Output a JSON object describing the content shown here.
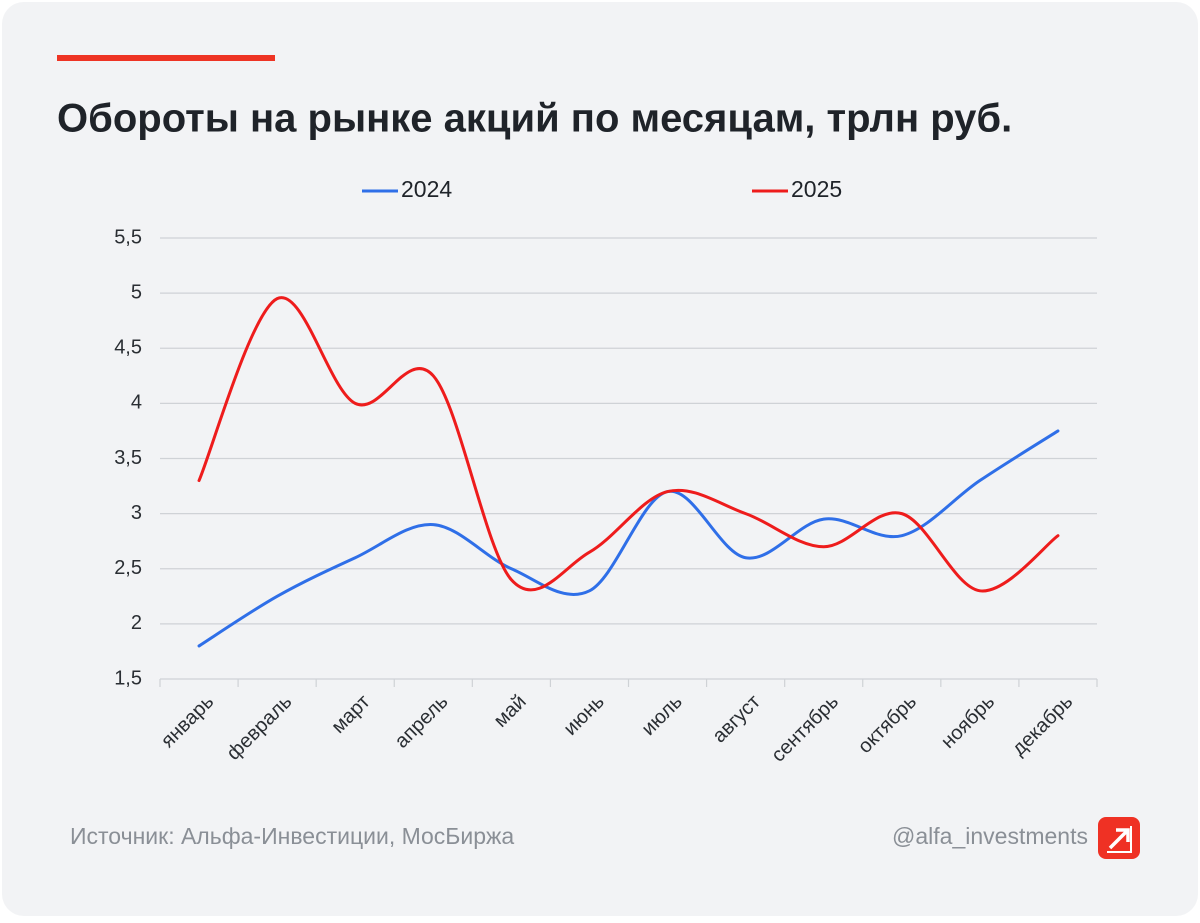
{
  "chart_data": {
    "type": "line",
    "title": "Обороты на рынке акций по месяцам, трлн руб.",
    "categories": [
      "январь",
      "февраль",
      "март",
      "апрель",
      "май",
      "июнь",
      "июль",
      "август",
      "сентябрь",
      "октябрь",
      "ноябрь",
      "декабрь"
    ],
    "series": [
      {
        "name": "2024",
        "color": "#2f6fe8",
        "values": [
          1.8,
          2.25,
          2.6,
          2.9,
          2.5,
          2.3,
          3.2,
          2.6,
          2.95,
          2.8,
          3.3,
          3.75
        ]
      },
      {
        "name": "2025",
        "color": "#ee1c1c",
        "values": [
          3.3,
          4.95,
          4.0,
          4.25,
          2.4,
          2.65,
          3.2,
          3.0,
          2.7,
          3.0,
          2.3,
          2.8
        ]
      }
    ],
    "ylim": [
      1.5,
      5.5
    ],
    "yticks": [
      {
        "value": 1.5,
        "label": "1,5"
      },
      2,
      {
        "value": 2.5,
        "label": "2,5"
      },
      3,
      {
        "value": 3.5,
        "label": "3,5"
      },
      4,
      {
        "value": 4.5,
        "label": "4,5"
      },
      5,
      {
        "value": 5.5,
        "label": "5,5"
      }
    ],
    "grid": true,
    "legend": "top",
    "smooth": true
  },
  "footer": {
    "source": "Источник: Альфа-Инвестиции, МосБиржа",
    "handle": "@alfa_investments"
  }
}
